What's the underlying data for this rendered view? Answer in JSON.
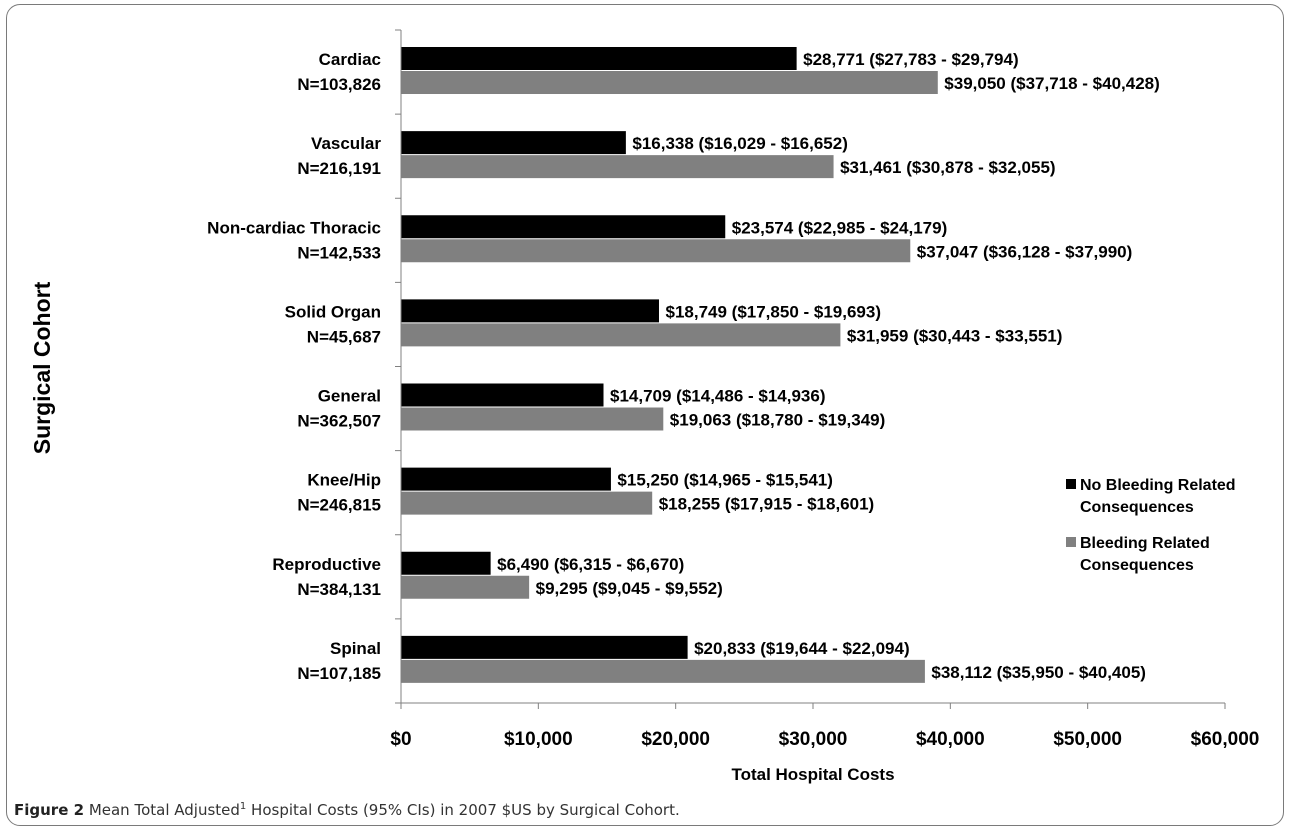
{
  "chart_data": {
    "type": "bar",
    "orientation": "horizontal",
    "xlabel": "Total Hospital Costs",
    "ylabel": "Surgical Cohort",
    "xlim": [
      0,
      60000
    ],
    "xticks": [
      0,
      10000,
      20000,
      30000,
      40000,
      50000,
      60000
    ],
    "xtick_labels": [
      "$0",
      "$10,000",
      "$20,000",
      "$30,000",
      "$40,000",
      "$50,000",
      "$60,000"
    ],
    "grid": false,
    "legend_position": "right",
    "categories": [
      {
        "name": "Cardiac",
        "n": "N=103,826"
      },
      {
        "name": "Vascular",
        "n": "N=216,191"
      },
      {
        "name": "Non-cardiac Thoracic",
        "n": "N=142,533"
      },
      {
        "name": "Solid Organ",
        "n": "N=45,687"
      },
      {
        "name": "General",
        "n": "N=362,507"
      },
      {
        "name": "Knee/Hip",
        "n": "N=246,815"
      },
      {
        "name": "Reproductive",
        "n": "N=384,131"
      },
      {
        "name": "Spinal",
        "n": "N=107,185"
      }
    ],
    "series": [
      {
        "name": "No Bleeding Related Consequences",
        "color": "#000000",
        "values": [
          28771,
          16338,
          23574,
          18749,
          14709,
          15250,
          6490,
          20833
        ],
        "labels": [
          "$28,771 ($27,783 - $29,794)",
          "$16,338 ($16,029 - $16,652)",
          "$23,574 ($22,985 - $24,179)",
          "$18,749 ($17,850 - $19,693)",
          "$14,709 ($14,486 - $14,936)",
          "$15,250 ($14,965 - $15,541)",
          "$6,490 ($6,315 - $6,670)",
          "$20,833 ($19,644 - $22,094)"
        ]
      },
      {
        "name": "Bleeding Related Consequences",
        "color": "#808080",
        "values": [
          39050,
          31461,
          37047,
          31959,
          19063,
          18255,
          9295,
          38112
        ],
        "labels": [
          "$39,050 ($37,718 - $40,428)",
          "$31,461 ($30,878 - $32,055)",
          "$37,047 ($36,128 - $37,990)",
          "$31,959 ($30,443 - $33,551)",
          "$19,063 ($18,780 - $19,349)",
          "$18,255 ($17,915 - $18,601)",
          "$9,295 ($9,045 - $9,552)",
          "$38,112 ($35,950 - $40,405)"
        ]
      }
    ],
    "legend": [
      {
        "line1": "No Bleeding Related",
        "line2": "Consequences"
      },
      {
        "line1": "Bleeding Related",
        "line2": "Consequences"
      }
    ]
  },
  "caption": {
    "prefix": "Figure 2",
    "text_before_sup": " Mean Total Adjusted",
    "sup": "1",
    "text_after_sup": " Hospital Costs (95% CIs) in 2007 $US by Surgical Cohort."
  }
}
